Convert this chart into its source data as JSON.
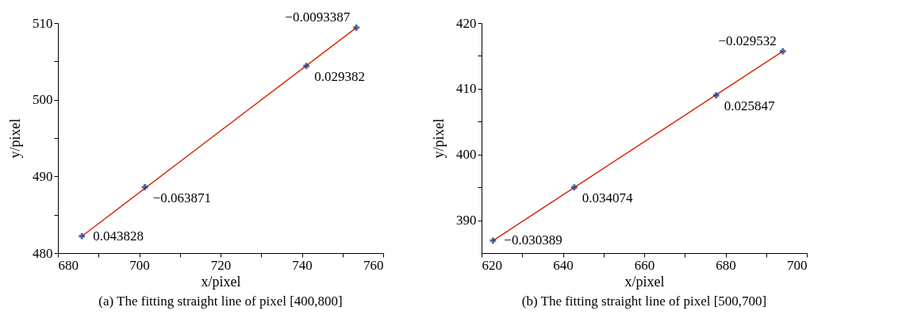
{
  "chart_data": [
    {
      "type": "scatter",
      "title": "(a) The fitting straight line of pixel [400,800]",
      "xlabel": "x/pixel",
      "ylabel": "y/pixel",
      "xlim": [
        680,
        760
      ],
      "ylim": [
        480,
        510
      ],
      "xticks": [
        680,
        {
          "value": 690,
          "label": null
        },
        700,
        {
          "value": 710,
          "label": null
        },
        720,
        {
          "value": 730,
          "label": null
        },
        740,
        {
          "value": 750,
          "label": null
        },
        760
      ],
      "yticks": [
        480,
        {
          "value": 485,
          "label": null
        },
        490,
        {
          "value": 495,
          "label": null
        },
        500,
        {
          "value": 505,
          "label": null
        },
        510
      ],
      "grid": false,
      "marker": "cross",
      "series": [
        {
          "type": "line",
          "color": "#d62a00",
          "x": [
            685.9,
            753.4
          ],
          "values": [
            482.2,
            509.4
          ],
          "line_style": "solid",
          "marker": "none"
        },
        {
          "color": "#0a2a7a",
          "x": [
            685.9,
            701.4,
            741.1,
            753.4
          ],
          "values": [
            482.2,
            488.6,
            504.4,
            509.4
          ]
        }
      ],
      "annotations": [
        {
          "text": "0.043828",
          "x": 685.9,
          "y": 482.2
        },
        {
          "text": "−0.063871",
          "x": 701.4,
          "y": 488.6
        },
        {
          "text": "0.029382",
          "x": 741.1,
          "y": 504.4
        },
        {
          "text": "−0.0093387",
          "x": 753.4,
          "y": 509.4
        }
      ]
    },
    {
      "type": "scatter",
      "title": "(b) The fitting straight line of pixel [500,700]",
      "xlabel": "x/pixel",
      "ylabel": "y/pixel",
      "xlim": [
        620,
        700
      ],
      "ylim": [
        385,
        420
      ],
      "xticks": [
        620,
        {
          "value": 630,
          "label": null
        },
        640,
        {
          "value": 650,
          "label": null
        },
        660,
        {
          "value": 670,
          "label": null
        },
        680,
        {
          "value": 690,
          "label": null
        },
        700
      ],
      "yticks": [
        390,
        {
          "value": 395,
          "label": null
        },
        400,
        {
          "value": 405,
          "label": null
        },
        410,
        {
          "value": 415,
          "label": null
        },
        420
      ],
      "grid": false,
      "marker": "cross",
      "series": [
        {
          "type": "line",
          "color": "#d62a00",
          "x": [
            622.8,
            694.1
          ],
          "values": [
            386.9,
            415.7
          ],
          "line_style": "solid",
          "marker": "none"
        },
        {
          "color": "#0a2a7a",
          "x": [
            622.8,
            642.8,
            677.7,
            694.1
          ],
          "values": [
            386.9,
            395.0,
            409.0,
            415.7
          ]
        }
      ],
      "annotations": [
        {
          "text": "−0.030389",
          "x": 622.8,
          "y": 386.9
        },
        {
          "text": "0.034074",
          "x": 642.8,
          "y": 395.0
        },
        {
          "text": "0.025847",
          "x": 677.7,
          "y": 409.0
        },
        {
          "text": "−0.029532",
          "x": 694.1,
          "y": 415.7
        }
      ]
    }
  ]
}
